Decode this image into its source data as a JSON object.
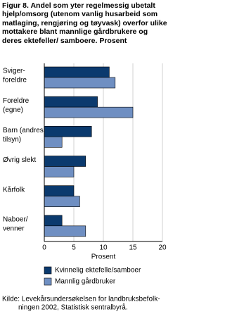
{
  "chart_data": {
    "type": "hbar",
    "title": "Figur 8.  Andel som yter regelmessig ubetalt hjelp/omsorg (utenom vanlig husarbeid som matlaging, rengjøring og tøyvask) overfor ulike mottakere blant mannlige gårdbrukere og deres ektefeller/ samboere. Prosent",
    "categories": [
      [
        "Sviger-",
        "foreldre"
      ],
      [
        "Foreldre",
        "(egne)"
      ],
      [
        "Barn (andres,",
        "tilsyn)"
      ],
      [
        "Øvrig slekt"
      ],
      [
        "Kårfolk"
      ],
      [
        "Naboer/",
        "venner"
      ]
    ],
    "series": [
      {
        "name": "Kvinnelig ektefelle/samboer",
        "color": "#0b3a6e",
        "values": [
          11,
          9,
          8,
          7,
          5,
          3
        ]
      },
      {
        "name": "Mannlig gårdbruker",
        "color": "#6f8fc2",
        "values": [
          12,
          15,
          3,
          5,
          6,
          7
        ]
      }
    ],
    "xlim": [
      0,
      20
    ],
    "xticks": [
      0,
      5,
      10,
      15,
      20
    ],
    "xlabel": "Prosent",
    "grid": true,
    "source": [
      "Kilde: Levekårsundersøkelsen for landbruksbefolk-",
      "ningen 2002, Statistisk sentralbyrå."
    ]
  }
}
